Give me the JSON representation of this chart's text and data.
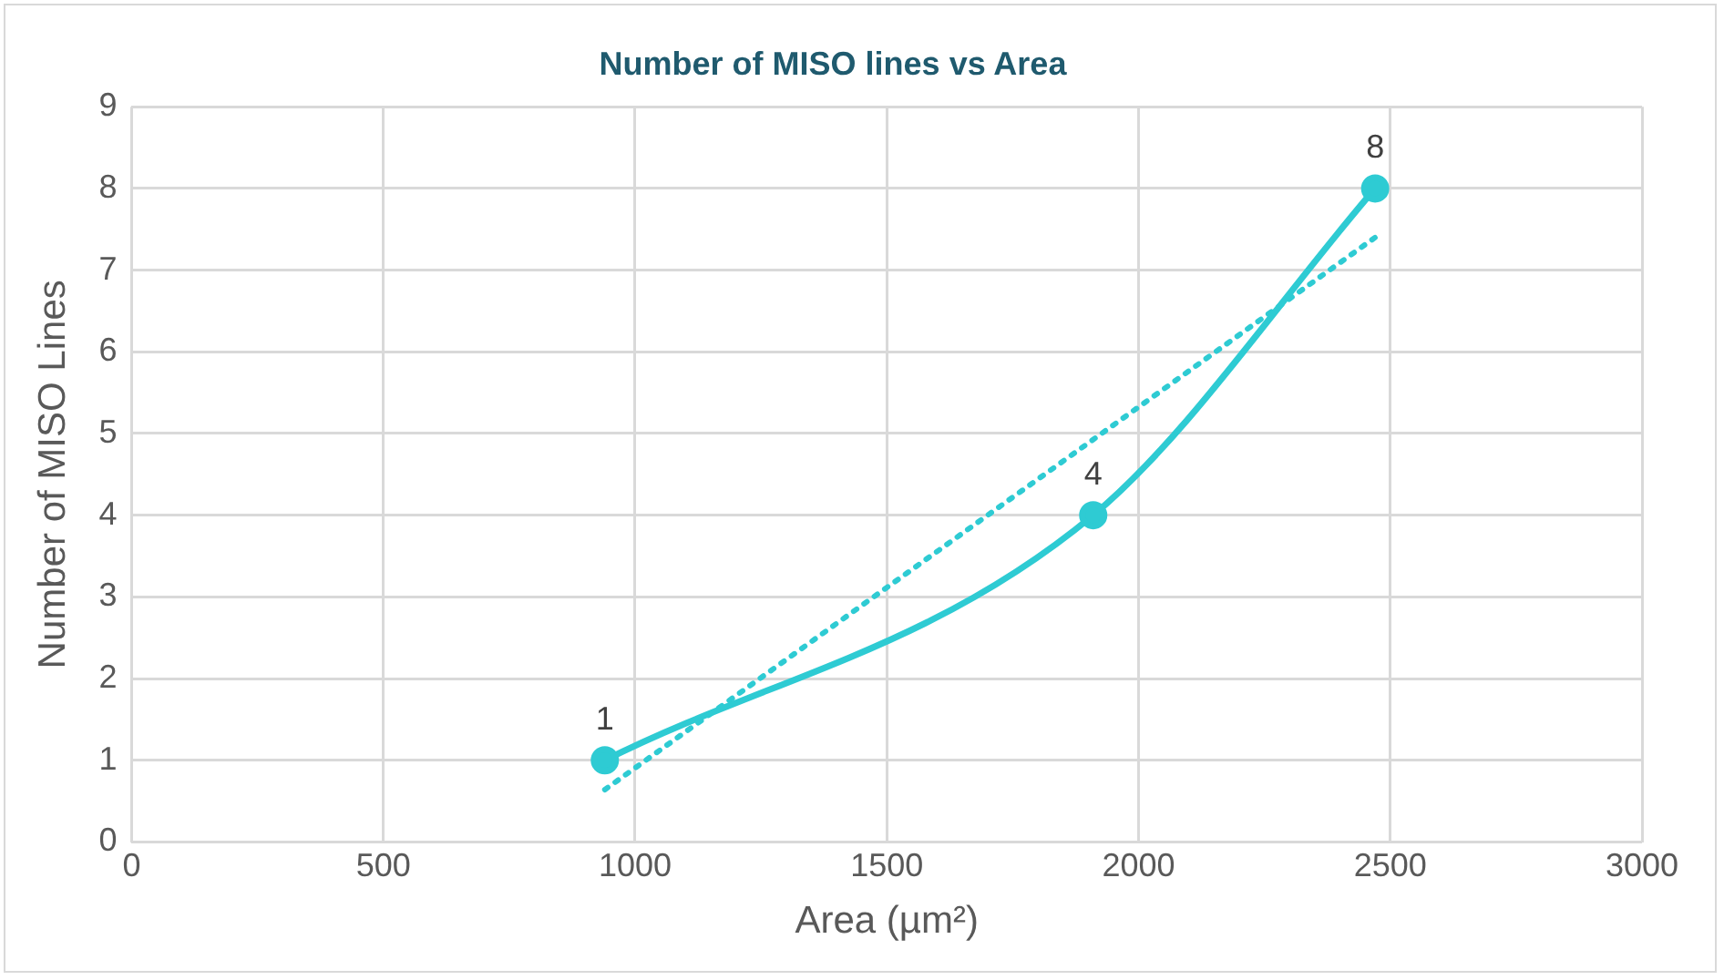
{
  "chart_data": {
    "type": "line",
    "title": "Number of MISO lines vs Area",
    "xlabel": "Area (µm²)",
    "ylabel": "Number of MISO Lines",
    "xlim": [
      0,
      3000
    ],
    "xticks": [
      0,
      500,
      1000,
      1500,
      2000,
      2500,
      3000
    ],
    "ylim": [
      0,
      9
    ],
    "yticks": [
      0,
      1,
      2,
      3,
      4,
      5,
      6,
      7,
      8,
      9
    ],
    "grid": true,
    "legend": false,
    "series": [
      {
        "color": "#2ecbd3",
        "x": [
          940,
          1910,
          2470
        ],
        "values": [
          1,
          4,
          8
        ],
        "value_labels": [
          "1",
          "4",
          "8"
        ],
        "marker": "circle",
        "line_style": "solid"
      },
      {
        "color": "#2ecbd3",
        "x": [
          940,
          2470
        ],
        "values": [
          0.64,
          7.4
        ],
        "marker": "none",
        "line_style": "dotted"
      }
    ]
  }
}
